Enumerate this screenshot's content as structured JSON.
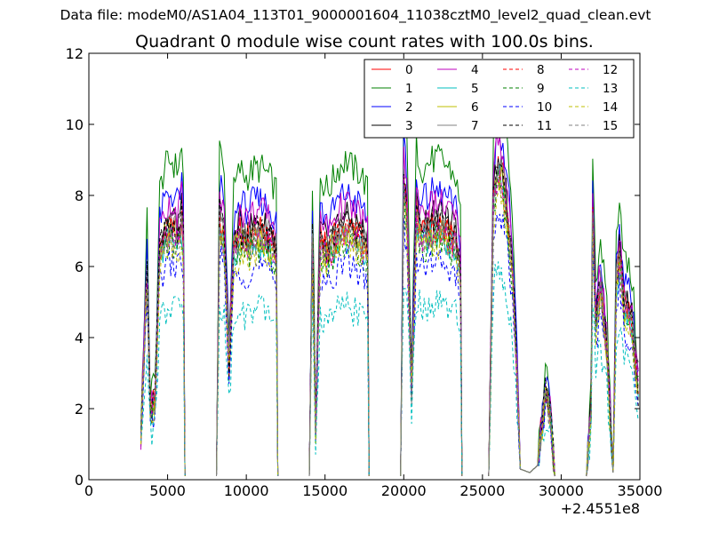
{
  "figure_title": "Data file: modeM0/AS1A04_113T01_9000001604_11038cztM0_level2_quad_clean.evt",
  "chart_data": {
    "type": "line",
    "title": "Quadrant 0 module wise count rates with 100.0s bins.",
    "xlabel": "",
    "ylabel": "",
    "x_offset_text": "+2.4551e8",
    "xlim": [
      0,
      35000
    ],
    "ylim": [
      0,
      12
    ],
    "xticks": [
      0,
      5000,
      10000,
      15000,
      20000,
      25000,
      30000,
      35000
    ],
    "yticks": [
      0,
      2,
      4,
      6,
      8,
      10,
      12
    ],
    "grid": false,
    "legend": {
      "placement": "top-right",
      "columns": 4
    },
    "segments": [
      [
        3300,
        6100
      ],
      [
        8100,
        12000
      ],
      [
        14000,
        17800
      ],
      [
        19800,
        23700
      ],
      [
        25400,
        27400
      ],
      [
        27400,
        29600
      ],
      [
        31600,
        34900
      ]
    ],
    "baseline": [
      [
        3300,
        1.2
      ],
      [
        3700,
        5.8
      ],
      [
        3900,
        2.0
      ],
      [
        4200,
        2.2
      ],
      [
        4500,
        6.5
      ],
      [
        4800,
        7.0
      ],
      [
        5200,
        7.2
      ],
      [
        5600,
        7.0
      ],
      [
        5900,
        7.4
      ],
      [
        6050,
        6.5
      ],
      [
        6100,
        0.1
      ],
      [
        8100,
        0.1
      ],
      [
        8300,
        7.5
      ],
      [
        8600,
        6.8
      ],
      [
        8900,
        3.2
      ],
      [
        9200,
        6.5
      ],
      [
        9600,
        7.0
      ],
      [
        10000,
        6.8
      ],
      [
        10500,
        7.0
      ],
      [
        11000,
        7.0
      ],
      [
        11500,
        6.8
      ],
      [
        11900,
        6.5
      ],
      [
        12000,
        0.1
      ],
      [
        14000,
        0.1
      ],
      [
        14200,
        6.8
      ],
      [
        14400,
        1.5
      ],
      [
        14700,
        6.8
      ],
      [
        15200,
        6.5
      ],
      [
        15800,
        7.0
      ],
      [
        16300,
        7.2
      ],
      [
        16800,
        7.0
      ],
      [
        17300,
        6.9
      ],
      [
        17700,
        6.5
      ],
      [
        17800,
        0.1
      ],
      [
        19800,
        0.1
      ],
      [
        20000,
        8.5
      ],
      [
        20200,
        7.5
      ],
      [
        20500,
        2.5
      ],
      [
        20800,
        7.5
      ],
      [
        21200,
        7.0
      ],
      [
        21800,
        7.2
      ],
      [
        22400,
        7.2
      ],
      [
        22900,
        7.0
      ],
      [
        23300,
        6.8
      ],
      [
        23600,
        6.0
      ],
      [
        23700,
        0.1
      ],
      [
        25400,
        0.1
      ],
      [
        25700,
        8.0
      ],
      [
        26000,
        9.0
      ],
      [
        26300,
        8.5
      ],
      [
        26600,
        7.5
      ],
      [
        26900,
        6.0
      ],
      [
        27200,
        3.0
      ],
      [
        27400,
        0.3
      ],
      [
        27400,
        0.3
      ],
      [
        28000,
        0.2
      ],
      [
        28500,
        0.4
      ],
      [
        29000,
        2.5
      ],
      [
        29300,
        1.8
      ],
      [
        29600,
        0.1
      ],
      [
        31600,
        0.1
      ],
      [
        31900,
        2.0
      ],
      [
        32000,
        7.5
      ],
      [
        32200,
        4.5
      ],
      [
        32500,
        5.5
      ],
      [
        32900,
        3.8
      ],
      [
        33300,
        0.2
      ],
      [
        33500,
        5.5
      ],
      [
        33700,
        6.5
      ],
      [
        34000,
        5.0
      ],
      [
        34500,
        4.5
      ],
      [
        34900,
        2.5
      ]
    ],
    "series": [
      {
        "name": "0",
        "color": "#ff0000",
        "style": "solid",
        "scale": 1.0
      },
      {
        "name": "1",
        "color": "#008000",
        "style": "solid",
        "scale": 1.25
      },
      {
        "name": "2",
        "color": "#0000ff",
        "style": "solid",
        "scale": 1.12
      },
      {
        "name": "3",
        "color": "#000000",
        "style": "solid",
        "scale": 1.03
      },
      {
        "name": "4",
        "color": "#bf00bf",
        "style": "solid",
        "scale": 1.08
      },
      {
        "name": "5",
        "color": "#00bfbf",
        "style": "solid",
        "scale": 0.95
      },
      {
        "name": "6",
        "color": "#bfbf00",
        "style": "solid",
        "scale": 0.97
      },
      {
        "name": "7",
        "color": "#808080",
        "style": "solid",
        "scale": 1.0
      },
      {
        "name": "8",
        "color": "#ff0000",
        "style": "dashed",
        "scale": 0.98
      },
      {
        "name": "9",
        "color": "#008000",
        "style": "dashed",
        "scale": 0.93
      },
      {
        "name": "10",
        "color": "#0000ff",
        "style": "dashed",
        "scale": 0.85
      },
      {
        "name": "11",
        "color": "#000000",
        "style": "dashed",
        "scale": 1.0
      },
      {
        "name": "12",
        "color": "#bf00bf",
        "style": "dashed",
        "scale": 0.96
      },
      {
        "name": "13",
        "color": "#00bfbf",
        "style": "dashed",
        "scale": 0.68
      },
      {
        "name": "14",
        "color": "#bfbf00",
        "style": "dashed",
        "scale": 0.92
      },
      {
        "name": "15",
        "color": "#808080",
        "style": "dashed",
        "scale": 0.96
      }
    ]
  }
}
